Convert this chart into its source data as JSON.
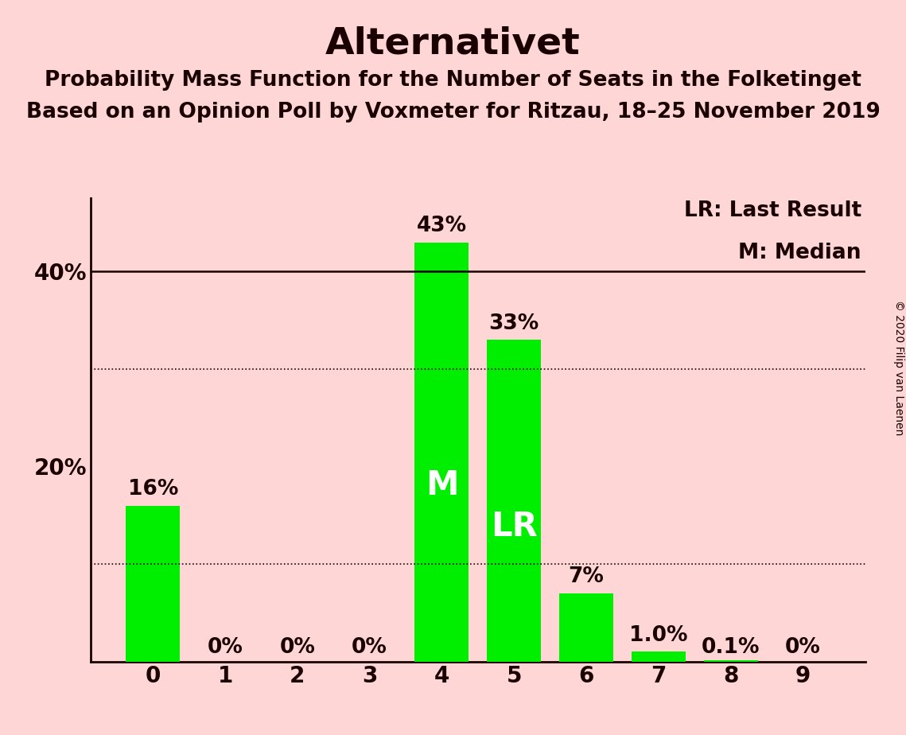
{
  "title": "Alternativet",
  "subtitle1": "Probability Mass Function for the Number of Seats in the Folketinget",
  "subtitle2": "Based on an Opinion Poll by Voxmeter for Ritzau, 18–25 November 2019",
  "copyright": "© 2020 Filip van Laenen",
  "legend_lr": "LR: Last Result",
  "legend_m": "M: Median",
  "categories": [
    0,
    1,
    2,
    3,
    4,
    5,
    6,
    7,
    8,
    9
  ],
  "values": [
    0.16,
    0.0,
    0.0,
    0.0,
    0.43,
    0.33,
    0.07,
    0.01,
    0.001,
    0.0
  ],
  "labels": [
    "16%",
    "0%",
    "0%",
    "0%",
    "43%",
    "33%",
    "7%",
    "1.0%",
    "0.1%",
    "0%"
  ],
  "bar_color": "#00ee00",
  "background_color": "#ffd6d6",
  "text_color": "#1a0000",
  "median_bar": 4,
  "lr_bar": 5,
  "label_inside_bars": [
    4,
    5
  ],
  "label_inside_text": [
    "M",
    "LR"
  ],
  "yticks": [
    0.0,
    0.2,
    0.4
  ],
  "ytick_labels": [
    "",
    "20%",
    "40%"
  ],
  "ylim": [
    0,
    0.475
  ],
  "solid_line_y": [
    0.4
  ],
  "dotted_line_y": [
    0.3,
    0.1
  ],
  "title_fontsize": 34,
  "subtitle_fontsize": 19,
  "label_fontsize": 19,
  "tick_fontsize": 20,
  "inside_label_fontsize": 30,
  "copyright_fontsize": 10,
  "bar_width": 0.75
}
